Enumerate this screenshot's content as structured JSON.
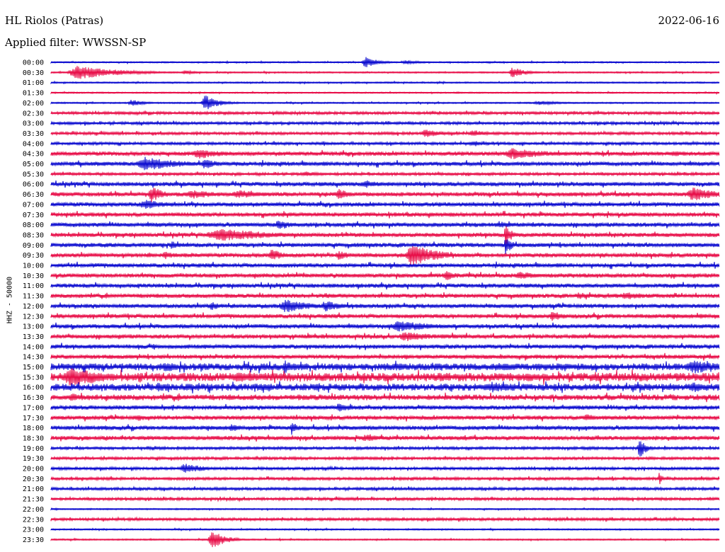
{
  "header": {
    "station": "HL Riolos (Patras)",
    "date": "2022-06-16",
    "filter": "Applied filter: WWSSN-SP"
  },
  "chart_data": {
    "type": "line",
    "title": "HL Riolos (Patras)",
    "ylabel": "HHZ - 50000",
    "categories": [
      "00:00",
      "00:30",
      "01:00",
      "01:30",
      "02:00",
      "02:30",
      "03:00",
      "03:30",
      "04:00",
      "04:30",
      "05:00",
      "05:30",
      "06:00",
      "06:30",
      "07:00",
      "07:30",
      "08:00",
      "08:30",
      "09:00",
      "09:30",
      "10:00",
      "10:30",
      "11:00",
      "11:30",
      "12:00",
      "12:30",
      "13:00",
      "13:30",
      "14:00",
      "14:30",
      "15:00",
      "15:30",
      "16:00",
      "16:30",
      "17:00",
      "17:30",
      "18:00",
      "18:30",
      "19:00",
      "19:30",
      "20:00",
      "20:30",
      "21:00",
      "21:30",
      "22:00",
      "22:30",
      "23:00",
      "23:30"
    ],
    "colors": [
      "#1010d0",
      "#e8104a"
    ],
    "noise_level": [
      1,
      1,
      1,
      1,
      1,
      2,
      2,
      2,
      2,
      3,
      3,
      2,
      3,
      3,
      3,
      3,
      3,
      3,
      3,
      3,
      3,
      3,
      3,
      3,
      3,
      3,
      3,
      3,
      3,
      3,
      5,
      6,
      5,
      4,
      3,
      3,
      3,
      3,
      2,
      2,
      2,
      2,
      2,
      2,
      1,
      2,
      1,
      1
    ],
    "events": [
      {
        "trace": "00:00",
        "x": 0.47,
        "amp": 8,
        "width": 0.02
      },
      {
        "trace": "00:00",
        "x": 0.53,
        "amp": 3,
        "width": 0.03
      },
      {
        "trace": "00:30",
        "x": 0.04,
        "amp": 10,
        "width": 0.06
      },
      {
        "trace": "00:30",
        "x": 0.2,
        "amp": 3,
        "width": 0.02
      },
      {
        "trace": "00:30",
        "x": 0.69,
        "amp": 8,
        "width": 0.02
      },
      {
        "trace": "02:00",
        "x": 0.12,
        "amp": 5,
        "width": 0.02
      },
      {
        "trace": "02:00",
        "x": 0.23,
        "amp": 12,
        "width": 0.02
      },
      {
        "trace": "02:00",
        "x": 0.73,
        "amp": 3,
        "width": 0.04
      },
      {
        "trace": "03:30",
        "x": 0.56,
        "amp": 6,
        "width": 0.03
      },
      {
        "trace": "03:30",
        "x": 0.63,
        "amp": 6,
        "width": 0.02
      },
      {
        "trace": "04:00",
        "x": 0.63,
        "amp": 5,
        "width": 0.02
      },
      {
        "trace": "04:30",
        "x": 0.22,
        "amp": 8,
        "width": 0.04
      },
      {
        "trace": "04:30",
        "x": 0.69,
        "amp": 8,
        "width": 0.06
      },
      {
        "trace": "04:30",
        "x": 0.93,
        "amp": 5,
        "width": 0.02
      },
      {
        "trace": "05:00",
        "x": 0.14,
        "amp": 10,
        "width": 0.06
      },
      {
        "trace": "05:00",
        "x": 0.23,
        "amp": 8,
        "width": 0.02
      },
      {
        "trace": "05:30",
        "x": 0.38,
        "amp": 4,
        "width": 0.03
      },
      {
        "trace": "06:00",
        "x": 0.47,
        "amp": 6,
        "width": 0.03
      },
      {
        "trace": "06:30",
        "x": 0.15,
        "amp": 12,
        "width": 0.02
      },
      {
        "trace": "06:30",
        "x": 0.21,
        "amp": 7,
        "width": 0.04
      },
      {
        "trace": "06:30",
        "x": 0.28,
        "amp": 6,
        "width": 0.05
      },
      {
        "trace": "06:30",
        "x": 0.43,
        "amp": 8,
        "width": 0.02
      },
      {
        "trace": "06:30",
        "x": 0.96,
        "amp": 10,
        "width": 0.04
      },
      {
        "trace": "07:00",
        "x": 0.14,
        "amp": 7,
        "width": 0.04
      },
      {
        "trace": "08:00",
        "x": 0.34,
        "amp": 8,
        "width": 0.02
      },
      {
        "trace": "08:00",
        "x": 0.67,
        "amp": 5,
        "width": 0.03
      },
      {
        "trace": "08:30",
        "x": 0.25,
        "amp": 10,
        "width": 0.08
      },
      {
        "trace": "08:30",
        "x": 0.68,
        "amp": 16,
        "width": 0.01
      },
      {
        "trace": "09:00",
        "x": 0.18,
        "amp": 6,
        "width": 0.02
      },
      {
        "trace": "09:00",
        "x": 0.68,
        "amp": 14,
        "width": 0.01
      },
      {
        "trace": "09:30",
        "x": 0.17,
        "amp": 6,
        "width": 0.02
      },
      {
        "trace": "09:30",
        "x": 0.33,
        "amp": 9,
        "width": 0.02
      },
      {
        "trace": "09:30",
        "x": 0.43,
        "amp": 7,
        "width": 0.02
      },
      {
        "trace": "09:30",
        "x": 0.54,
        "amp": 16,
        "width": 0.04
      },
      {
        "trace": "10:30",
        "x": 0.59,
        "amp": 8,
        "width": 0.02
      },
      {
        "trace": "10:30",
        "x": 0.7,
        "amp": 6,
        "width": 0.04
      },
      {
        "trace": "11:30",
        "x": 0.41,
        "amp": 4,
        "width": 0.04
      },
      {
        "trace": "11:30",
        "x": 0.79,
        "amp": 6,
        "width": 0.02
      },
      {
        "trace": "11:30",
        "x": 0.86,
        "amp": 6,
        "width": 0.04
      },
      {
        "trace": "12:00",
        "x": 0.24,
        "amp": 6,
        "width": 0.02
      },
      {
        "trace": "12:00",
        "x": 0.35,
        "amp": 10,
        "width": 0.04
      },
      {
        "trace": "12:00",
        "x": 0.41,
        "amp": 8,
        "width": 0.03
      },
      {
        "trace": "12:30",
        "x": 0.75,
        "amp": 8,
        "width": 0.02
      },
      {
        "trace": "12:30",
        "x": 0.97,
        "amp": 4,
        "width": 0.03
      },
      {
        "trace": "13:00",
        "x": 0.52,
        "amp": 8,
        "width": 0.06
      },
      {
        "trace": "13:30",
        "x": 0.53,
        "amp": 7,
        "width": 0.05
      },
      {
        "trace": "15:00",
        "x": 0.17,
        "amp": 8,
        "width": 0.03
      },
      {
        "trace": "15:00",
        "x": 0.35,
        "amp": 10,
        "width": 0.02
      },
      {
        "trace": "15:00",
        "x": 0.5,
        "amp": 6,
        "width": 0.03
      },
      {
        "trace": "15:00",
        "x": 0.67,
        "amp": 6,
        "width": 0.05
      },
      {
        "trace": "15:00",
        "x": 0.96,
        "amp": 10,
        "width": 0.05
      },
      {
        "trace": "15:30",
        "x": 0.03,
        "amp": 14,
        "width": 0.06
      },
      {
        "trace": "15:30",
        "x": 0.28,
        "amp": 8,
        "width": 0.04
      },
      {
        "trace": "16:00",
        "x": 0.16,
        "amp": 7,
        "width": 0.02
      },
      {
        "trace": "16:00",
        "x": 0.66,
        "amp": 8,
        "width": 0.04
      },
      {
        "trace": "16:00",
        "x": 0.96,
        "amp": 8,
        "width": 0.03
      },
      {
        "trace": "16:30",
        "x": 0.03,
        "amp": 6,
        "width": 0.03
      },
      {
        "trace": "17:00",
        "x": 0.43,
        "amp": 6,
        "width": 0.03
      },
      {
        "trace": "17:30",
        "x": 0.13,
        "amp": 5,
        "width": 0.02
      },
      {
        "trace": "17:30",
        "x": 0.8,
        "amp": 6,
        "width": 0.02
      },
      {
        "trace": "18:00",
        "x": 0.27,
        "amp": 6,
        "width": 0.02
      },
      {
        "trace": "18:00",
        "x": 0.36,
        "amp": 10,
        "width": 0.01
      },
      {
        "trace": "18:30",
        "x": 0.47,
        "amp": 5,
        "width": 0.04
      },
      {
        "trace": "19:00",
        "x": 0.88,
        "amp": 16,
        "width": 0.01
      },
      {
        "trace": "20:00",
        "x": 0.2,
        "amp": 8,
        "width": 0.03
      },
      {
        "trace": "20:30",
        "x": 0.91,
        "amp": 10,
        "width": 0.005
      },
      {
        "trace": "23:30",
        "x": 0.24,
        "amp": 14,
        "width": 0.02
      }
    ]
  }
}
